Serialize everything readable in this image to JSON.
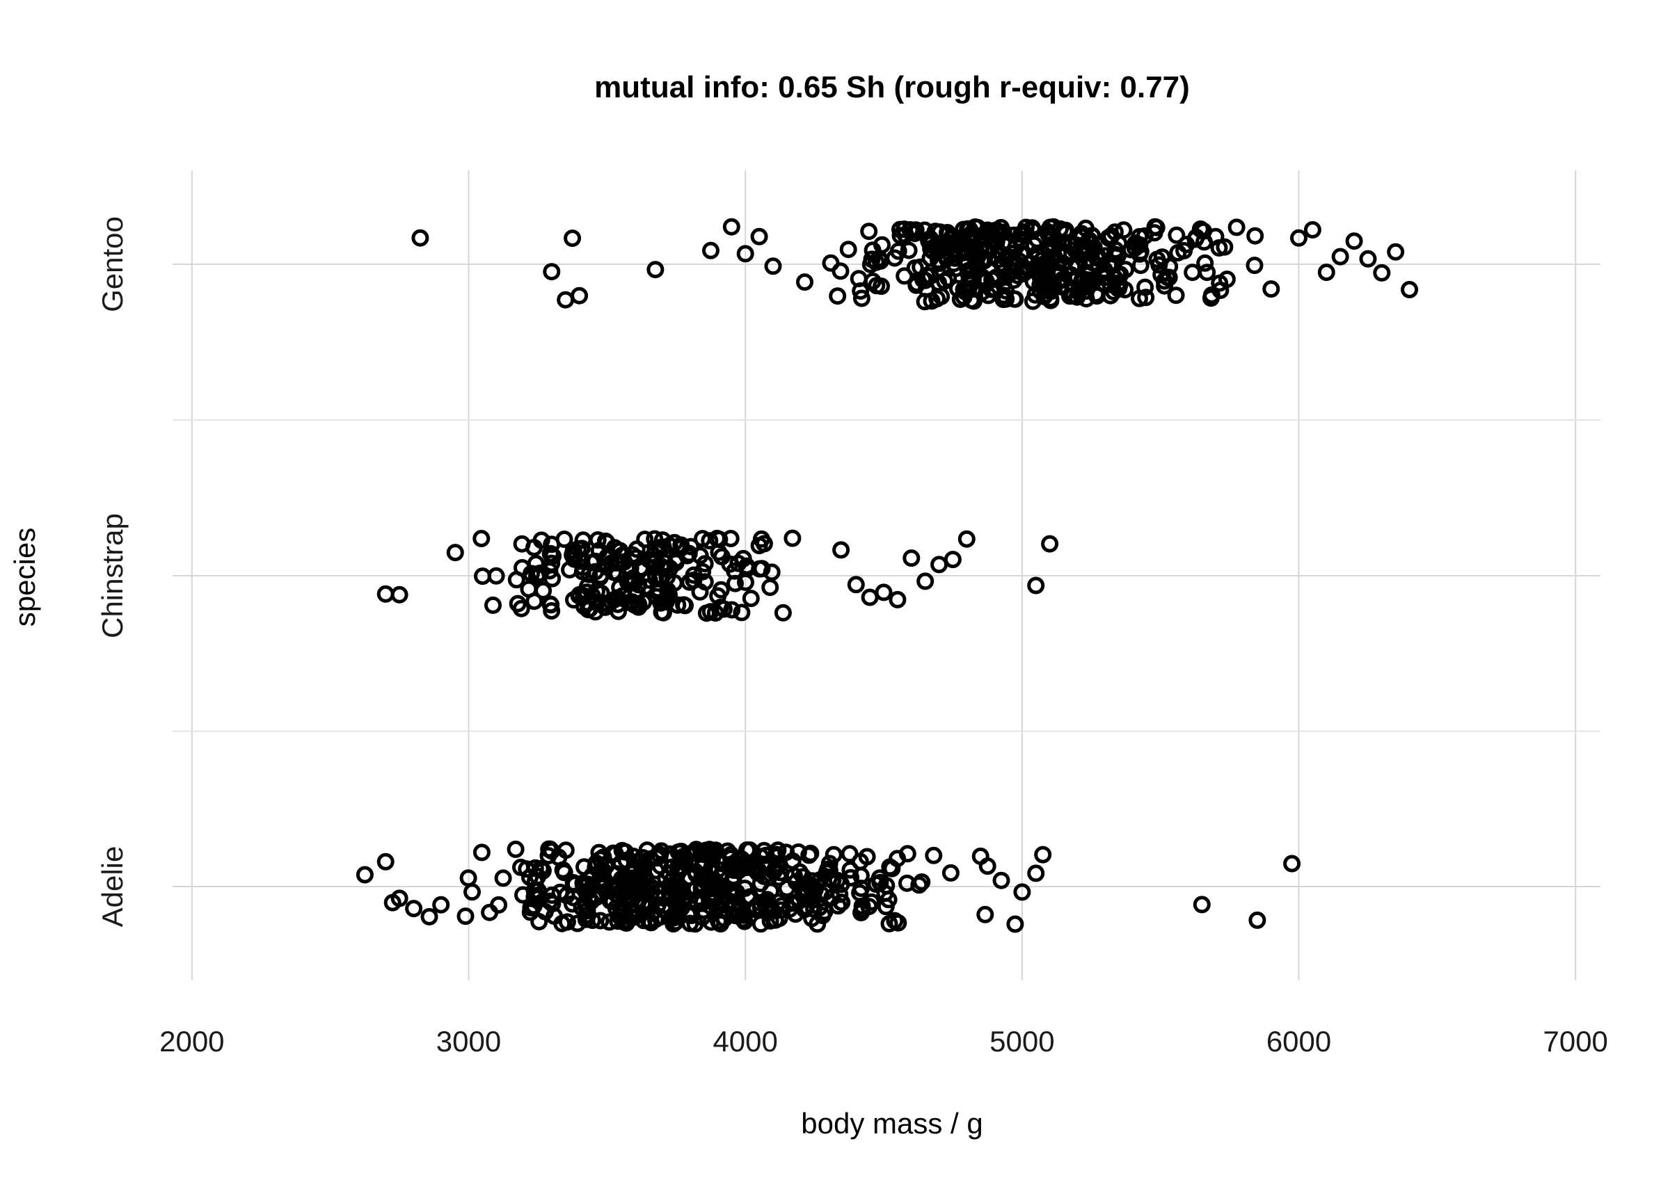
{
  "chart_data": {
    "type": "scatter",
    "title": "mutual info: 0.65 Sh  (rough r-equiv: 0.77)",
    "xlabel": "body mass / g",
    "ylabel": "species",
    "xlim": [
      1930,
      7090
    ],
    "x_ticks": [
      "2000",
      "3000",
      "4000",
      "5000",
      "6000",
      "7000"
    ],
    "categories": [
      "Adelie",
      "Chinstrap",
      "Gentoo"
    ],
    "grid": true,
    "marker": "open-circle",
    "jitter": 0.22,
    "series": [
      {
        "category": "Adelie",
        "range": [
          2850,
          4775
        ],
        "count": 440,
        "seed": 11,
        "outliers": [
          2625,
          2700,
          2725,
          2750,
          2900,
          4850,
          4875,
          4925,
          4975,
          5000,
          5050,
          5075,
          5650,
          5850,
          5975
        ]
      },
      {
        "category": "Chinstrap",
        "range": [
          2950,
          4300
        ],
        "count": 200,
        "seed": 23,
        "outliers": [
          2700,
          2750,
          4400,
          4450,
          4500,
          4550,
          4600,
          4650,
          4700,
          4750,
          4800,
          5050,
          5100
        ]
      },
      {
        "category": "Gentoo",
        "range": [
          4200,
          5850
        ],
        "count": 370,
        "seed": 37,
        "outliers": [
          2825,
          3300,
          3350,
          3375,
          3400,
          3675,
          3875,
          3950,
          4000,
          4050,
          4100,
          5900,
          6000,
          6050,
          6100,
          6150,
          6200,
          6250,
          6300,
          6350,
          6400
        ]
      }
    ]
  }
}
